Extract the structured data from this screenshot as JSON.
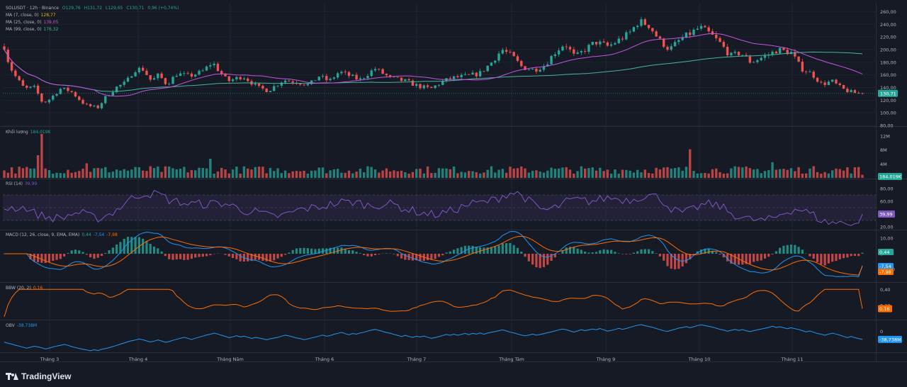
{
  "header": {
    "symbol": "SOLUSDT · 12h · Binance",
    "open": "O129,76",
    "high": "H131,72",
    "low": "L129,65",
    "close": "C130,71",
    "change": "0,96 (+0,74%)",
    "ma7_label": "MA (7, close, 0)",
    "ma7_value": "128,77",
    "ma25_label": "MA (25, close, 0)",
    "ma25_value": "139,05",
    "ma99_label": "MA (99, close, 0)",
    "ma99_value": "176,32"
  },
  "panes": {
    "volume_label": "Khối lượng",
    "volume_value": "184,019K",
    "rsi_label": "RSI (14)",
    "rsi_value": "39,99",
    "macd_label": "MACD (12, 26, close, 9, EMA, EMA)",
    "macd_hist": "0,44",
    "macd_line": "-7,54",
    "macd_signal": "-7,98",
    "bbw_label": "BBW (20, 2)",
    "bbw_value": "0,16",
    "obv_label": "OBV",
    "obv_value": "-38,738M"
  },
  "colors": {
    "up": "#26a69a",
    "down": "#ef5350",
    "ma7": "#f0b90b",
    "ma25": "#c455e0",
    "ma99": "#45b5a0",
    "rsi": "#7e57c2",
    "macd": "#2196f3",
    "signal": "#ff6d00",
    "bbw": "#ff6d00",
    "obv": "#2196f3"
  },
  "chart_data": [
    {
      "type": "candlestick",
      "pane": "price",
      "x": [
        "Tháng 3",
        "Tháng 4",
        "Tháng Năm",
        "Tháng 6",
        "Tháng 7",
        "Tháng Tám",
        "Tháng 9",
        "Tháng 10",
        "Tháng 11"
      ],
      "approx_close_path": [
        [
          0,
          205
        ],
        [
          0.05,
          175
        ],
        [
          0.12,
          155
        ],
        [
          0.2,
          138
        ],
        [
          0.3,
          140
        ],
        [
          0.38,
          115
        ],
        [
          0.45,
          122
        ],
        [
          0.55,
          138
        ],
        [
          0.65,
          135
        ],
        [
          0.8,
          112
        ],
        [
          0.92,
          108
        ],
        [
          1.0,
          125
        ],
        [
          1.1,
          140
        ],
        [
          1.2,
          148
        ],
        [
          1.28,
          168
        ],
        [
          1.36,
          170
        ],
        [
          1.45,
          150
        ],
        [
          1.52,
          160
        ],
        [
          1.6,
          145
        ],
        [
          1.7,
          162
        ],
        [
          1.82,
          158
        ],
        [
          1.95,
          165
        ],
        [
          2.05,
          180
        ],
        [
          2.12,
          165
        ],
        [
          2.2,
          150
        ],
        [
          2.35,
          158
        ],
        [
          2.5,
          140
        ],
        [
          2.6,
          135
        ],
        [
          2.75,
          152
        ],
        [
          2.9,
          148
        ],
        [
          3.0,
          144
        ],
        [
          3.1,
          158
        ],
        [
          3.2,
          150
        ],
        [
          3.3,
          165
        ],
        [
          3.5,
          152
        ],
        [
          3.65,
          170
        ],
        [
          3.8,
          155
        ],
        [
          3.95,
          150
        ],
        [
          4.08,
          142
        ],
        [
          4.2,
          138
        ],
        [
          4.3,
          148
        ],
        [
          4.4,
          155
        ],
        [
          4.55,
          158
        ],
        [
          4.68,
          162
        ],
        [
          4.8,
          180
        ],
        [
          4.9,
          200
        ],
        [
          5.0,
          190
        ],
        [
          5.1,
          172
        ],
        [
          5.22,
          168
        ],
        [
          5.32,
          175
        ],
        [
          5.42,
          195
        ],
        [
          5.52,
          210
        ],
        [
          5.62,
          188
        ],
        [
          5.72,
          200
        ],
        [
          5.82,
          212
        ],
        [
          5.95,
          205
        ],
        [
          6.05,
          215
        ],
        [
          6.15,
          225
        ],
        [
          6.25,
          245
        ],
        [
          6.35,
          238
        ],
        [
          6.45,
          215
        ],
        [
          6.55,
          200
        ],
        [
          6.65,
          215
        ],
        [
          6.75,
          225
        ],
        [
          6.85,
          235
        ],
        [
          6.95,
          225
        ],
        [
          7.05,
          210
        ],
        [
          7.15,
          190
        ],
        [
          7.25,
          195
        ],
        [
          7.35,
          180
        ],
        [
          7.5,
          190
        ],
        [
          7.62,
          200
        ],
        [
          7.75,
          195
        ],
        [
          7.85,
          170
        ],
        [
          7.95,
          162
        ],
        [
          8.05,
          145
        ],
        [
          8.15,
          150
        ],
        [
          8.25,
          138
        ],
        [
          8.35,
          132
        ],
        [
          8.45,
          130.71
        ]
      ],
      "ylim": [
        80,
        265
      ],
      "y_ticks": [
        "260,00",
        "240,00",
        "220,00",
        "200,00",
        "180,00",
        "160,00",
        "140,00",
        "120,00",
        "100,00",
        "80,00"
      ],
      "last_price": "130,71"
    },
    {
      "type": "bar",
      "pane": "volume",
      "y_ticks": [
        "12M",
        "8M",
        "4M"
      ],
      "last": "184,019K"
    },
    {
      "type": "line",
      "pane": "rsi",
      "y_ticks": [
        "80,00",
        "60,00",
        "40,00",
        "20,00"
      ],
      "bands": [
        30,
        70
      ],
      "middle": 50,
      "last": "39,99"
    },
    {
      "type": "line",
      "pane": "macd",
      "y_ticks": [
        "10,00",
        "0",
        "-10,00"
      ],
      "hist": "0,44",
      "macd": "-7,54",
      "signal": "-7,98"
    },
    {
      "type": "line",
      "pane": "bbw",
      "y_ticks": [
        "0,40",
        "0,20"
      ],
      "last": "0,16"
    },
    {
      "type": "line",
      "pane": "obv",
      "y_ticks": [
        "0"
      ],
      "last": "-38,738M"
    }
  ],
  "x_ticks": [
    "Tháng 3",
    "Tháng 4",
    "Tháng Năm",
    "Tháng 6",
    "Tháng 7",
    "Tháng Tám",
    "Tháng 9",
    "Tháng 10",
    "Tháng 11"
  ],
  "branding": {
    "logo_text": "TradingView"
  }
}
